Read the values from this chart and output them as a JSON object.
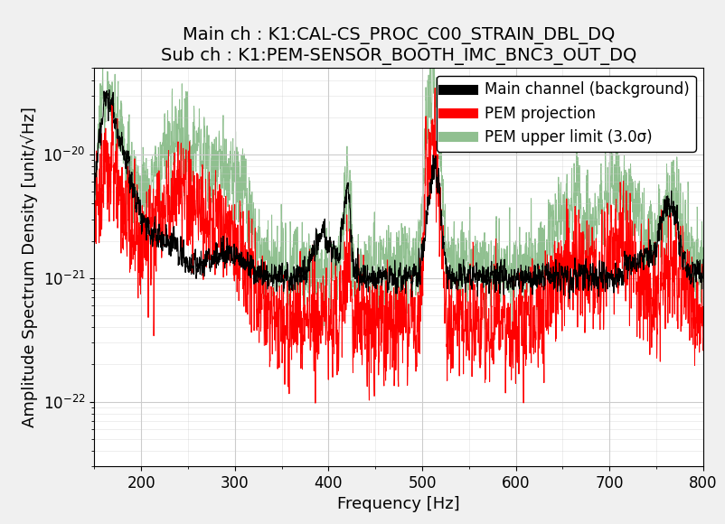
{
  "title_line1": "Main ch : K1:CAL-CS_PROC_C00_STRAIN_DBL_DQ",
  "title_line2": "Sub ch : K1:PEM-SENSOR_BOOTH_IMC_BNC3_OUT_DQ",
  "xlabel": "Frequency [Hz]",
  "ylabel": "Amplitude Spectrum Density [unit/√Hz]",
  "xlim": [
    150,
    800
  ],
  "ylim": [
    3e-23,
    5e-20
  ],
  "freq_min": 150,
  "freq_max": 800,
  "n_points": 3000,
  "legend_labels": [
    "Main channel (background)",
    "PEM projection",
    "PEM upper limit (3.0σ)"
  ],
  "main_color": "#000000",
  "pem_color": "#ff0000",
  "upper_color": "#90c090",
  "title_fontsize": 14,
  "label_fontsize": 13,
  "tick_fontsize": 12,
  "legend_fontsize": 12,
  "fig_facecolor": "#f0f0f0",
  "axes_facecolor": "#ffffff",
  "grid_color": "#cccccc",
  "seed": 12345
}
